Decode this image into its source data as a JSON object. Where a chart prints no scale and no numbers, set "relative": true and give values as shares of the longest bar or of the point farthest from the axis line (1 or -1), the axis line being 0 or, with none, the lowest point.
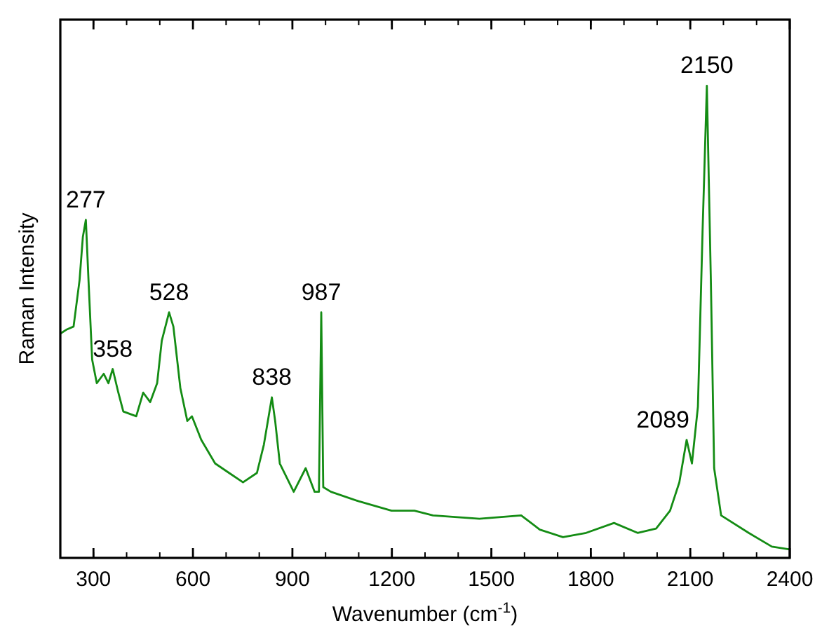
{
  "chart_data": {
    "type": "line",
    "relative": true,
    "xlabel": "Wavenumber (cm$^{-1}$)",
    "ylabel": "Raman Intensity",
    "xlim": [
      200,
      2400
    ],
    "xticks": [
      300,
      600,
      900,
      1200,
      1500,
      1800,
      2100,
      2400
    ],
    "grid": false,
    "line_style": "solid",
    "series": [
      {
        "color": "#148c14",
        "x": [
          200,
          220,
          240,
          258,
          268,
          277,
          285,
          296,
          310,
          331,
          345,
          358,
          375,
          390,
          429,
          450,
          471,
          492,
          506,
          528,
          541,
          562,
          583,
          597,
          625,
          667,
          709,
          751,
          793,
          814,
          838,
          848,
          862,
          904,
          940,
          967,
          980,
          987,
          993,
          1016,
          1100,
          1199,
          1268,
          1324,
          1464,
          1590,
          1646,
          1716,
          1786,
          1870,
          1941,
          1997,
          2039,
          2067,
          2089,
          2105,
          2123,
          2137,
          2150,
          2162,
          2172,
          2193,
          2276,
          2346,
          2400
        ],
        "values": [
          0.475,
          0.484,
          0.49,
          0.588,
          0.68,
          0.716,
          0.588,
          0.42,
          0.37,
          0.39,
          0.37,
          0.4,
          0.35,
          0.31,
          0.3,
          0.35,
          0.33,
          0.37,
          0.46,
          0.52,
          0.49,
          0.36,
          0.29,
          0.3,
          0.25,
          0.2,
          0.18,
          0.16,
          0.18,
          0.24,
          0.34,
          0.29,
          0.2,
          0.14,
          0.19,
          0.14,
          0.14,
          0.52,
          0.15,
          0.14,
          0.12,
          0.1,
          0.1,
          0.09,
          0.083,
          0.09,
          0.06,
          0.044,
          0.053,
          0.074,
          0.053,
          0.062,
          0.1,
          0.16,
          0.25,
          0.2,
          0.32,
          0.69,
          1.0,
          0.59,
          0.19,
          0.09,
          0.053,
          0.024,
          0.018
        ]
      }
    ],
    "annotations": [
      {
        "text": "277",
        "x": 277,
        "y": 0.716
      },
      {
        "text": "358",
        "x": 358,
        "y": 0.4
      },
      {
        "text": "528",
        "x": 528,
        "y": 0.52
      },
      {
        "text": "838",
        "x": 838,
        "y": 0.34
      },
      {
        "text": "987",
        "x": 987,
        "y": 0.52
      },
      {
        "text": "2089",
        "x": 2089,
        "y": 0.25
      },
      {
        "text": "2150",
        "x": 2150,
        "y": 1.0
      }
    ]
  }
}
